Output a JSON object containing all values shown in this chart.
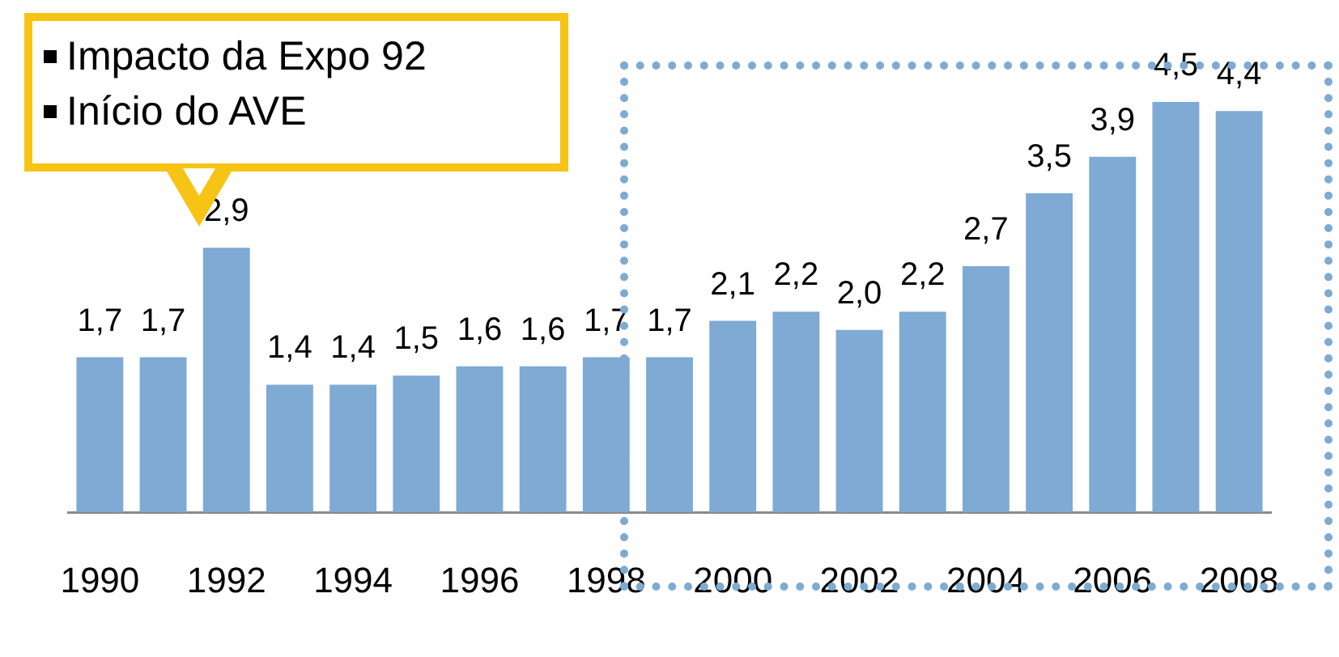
{
  "chart_data": {
    "type": "bar",
    "categories": [
      "1990",
      null,
      "1992",
      null,
      "1994",
      null,
      "1996",
      null,
      "1998",
      null,
      "2000",
      null,
      "2002",
      null,
      "2004",
      null,
      "2006",
      null,
      "2008"
    ],
    "values": [
      1.7,
      1.7,
      2.9,
      1.4,
      1.4,
      1.5,
      1.6,
      1.6,
      1.7,
      1.7,
      2.1,
      2.2,
      2.0,
      2.2,
      2.7,
      3.5,
      3.9,
      4.5,
      4.4
    ],
    "value_labels": [
      "1,7",
      "1,7",
      "2,9",
      "1,4",
      "1,4",
      "1,5",
      "1,6",
      "1,6",
      "1,7",
      "1,7",
      "2,1",
      "2,2",
      "2,0",
      "2,2",
      "2,7",
      "3,5",
      "3,9",
      "4,5",
      "4,4"
    ],
    "color": "#7eaad3",
    "tick_labels": "x",
    "grid": false,
    "legend": false,
    "annotations": [
      "Impacto da Expo 92",
      "Início do AVE"
    ]
  }
}
